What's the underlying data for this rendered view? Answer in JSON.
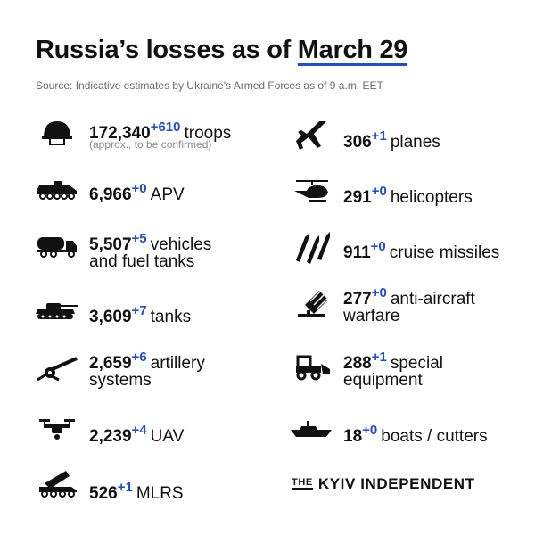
{
  "header": {
    "title_prefix": "Russia’s losses",
    "title_mid": "as of",
    "title_date": "March 29",
    "source": "Source: Indicative estimates by Ukraine's Armed Forces as of 9 a.m. EET"
  },
  "left": [
    {
      "value": "172,340",
      "increment": "+610",
      "label": "troops",
      "note": "(approx., to be confirmed)",
      "icon": "helmet-icon"
    },
    {
      "value": "6,966",
      "increment": "+0",
      "label": "APV",
      "icon": "apv-icon"
    },
    {
      "value": "5,507",
      "increment": "+5",
      "label": "vehicles",
      "label2": "and fuel tanks",
      "icon": "fuel-truck-icon"
    },
    {
      "value": "3,609",
      "increment": "+7",
      "label": "tanks",
      "icon": "tank-icon"
    },
    {
      "value": "2,659",
      "increment": "+6",
      "label": "artillery",
      "label2": "systems",
      "icon": "artillery-icon"
    },
    {
      "value": "2,239",
      "increment": "+4",
      "label": "UAV",
      "icon": "drone-icon"
    },
    {
      "value": "526",
      "increment": "+1",
      "label": "MLRS",
      "icon": "mlrs-icon"
    }
  ],
  "right": [
    {
      "value": "306",
      "increment": "+1",
      "label": "planes",
      "icon": "jet-icon"
    },
    {
      "value": "291",
      "increment": "+0",
      "label": "helicopters",
      "icon": "helicopter-icon"
    },
    {
      "value": "911",
      "increment": "+0",
      "label": "cruise missiles",
      "icon": "missiles-icon"
    },
    {
      "value": "277",
      "increment": "+0",
      "label": "anti-aircraft",
      "label2": "warfare",
      "icon": "anti-aircraft-icon"
    },
    {
      "value": "288",
      "increment": "+1",
      "label": "special",
      "label2": "equipment",
      "icon": "special-equipment-icon"
    },
    {
      "value": "18",
      "increment": "+0",
      "label": "boats / cutters",
      "icon": "boat-icon"
    }
  ],
  "brand": {
    "the": "THE",
    "name": "KYIV INDEPENDENT"
  },
  "colors": {
    "accent": "#1d4ed8",
    "text": "#111111",
    "muted": "#6b6b6b"
  }
}
